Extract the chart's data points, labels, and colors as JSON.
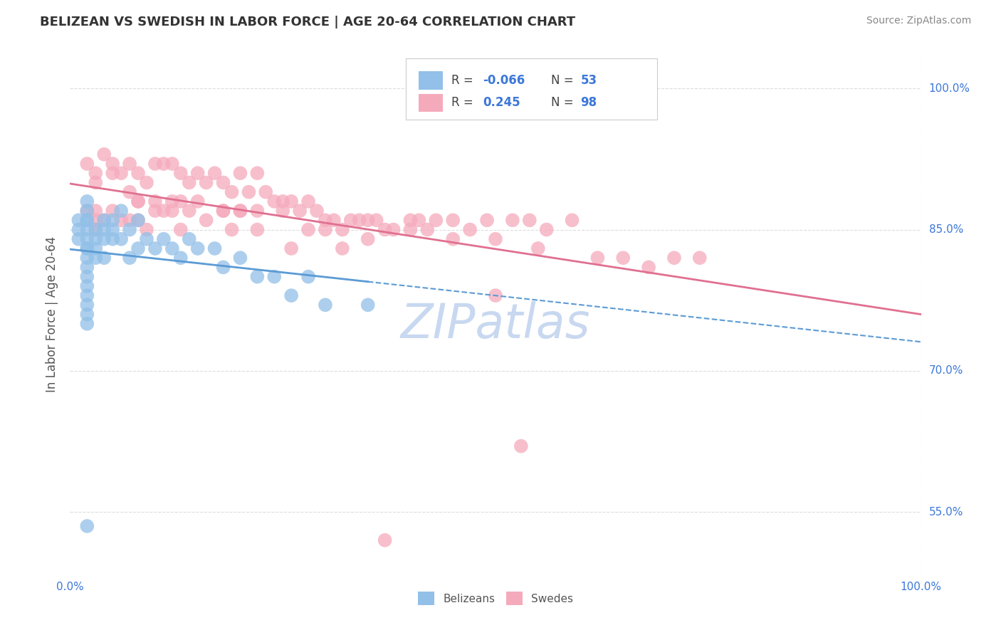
{
  "title": "BELIZEAN VS SWEDISH IN LABOR FORCE | AGE 20-64 CORRELATION CHART",
  "source": "Source: ZipAtlas.com",
  "ylabel": "In Labor Force | Age 20-64",
  "xlim": [
    0.0,
    1.0
  ],
  "ylim": [
    0.48,
    1.04
  ],
  "ytick_positions": [
    0.55,
    0.7,
    0.85,
    1.0
  ],
  "ytick_labels": [
    "55.0%",
    "70.0%",
    "85.0%",
    "100.0%"
  ],
  "belizean_color": "#92C0E8",
  "swedish_color": "#F5AABC",
  "belizean_R": -0.066,
  "belizean_N": 53,
  "swedish_R": 0.245,
  "swedish_N": 98,
  "legend_color": "#3C78D8",
  "watermark": "ZIPatlas",
  "watermark_color": "#C8D8F0",
  "background_color": "#FFFFFF",
  "grid_color": "#DDDDDD",
  "title_color": "#333333",
  "blue_line_color": "#5B9BD5",
  "pink_line_color": "#E07090",
  "belizean_x": [
    0.01,
    0.01,
    0.01,
    0.02,
    0.02,
    0.02,
    0.02,
    0.02,
    0.02,
    0.02,
    0.02,
    0.02,
    0.02,
    0.02,
    0.02,
    0.02,
    0.02,
    0.02,
    0.02,
    0.03,
    0.03,
    0.03,
    0.03,
    0.04,
    0.04,
    0.04,
    0.04,
    0.05,
    0.05,
    0.05,
    0.06,
    0.06,
    0.07,
    0.07,
    0.08,
    0.08,
    0.09,
    0.1,
    0.11,
    0.12,
    0.13,
    0.14,
    0.15,
    0.17,
    0.18,
    0.2,
    0.22,
    0.24,
    0.26,
    0.28,
    0.3,
    0.35,
    0.02
  ],
  "belizean_y": [
    0.86,
    0.85,
    0.84,
    0.88,
    0.87,
    0.86,
    0.86,
    0.85,
    0.84,
    0.83,
    0.83,
    0.82,
    0.81,
    0.8,
    0.79,
    0.78,
    0.77,
    0.76,
    0.75,
    0.85,
    0.84,
    0.83,
    0.82,
    0.86,
    0.85,
    0.84,
    0.82,
    0.86,
    0.85,
    0.84,
    0.87,
    0.84,
    0.85,
    0.82,
    0.86,
    0.83,
    0.84,
    0.83,
    0.84,
    0.83,
    0.82,
    0.84,
    0.83,
    0.83,
    0.81,
    0.82,
    0.8,
    0.8,
    0.78,
    0.8,
    0.77,
    0.77,
    0.535
  ],
  "swedish_x": [
    0.02,
    0.03,
    0.03,
    0.04,
    0.05,
    0.05,
    0.06,
    0.07,
    0.07,
    0.08,
    0.08,
    0.09,
    0.1,
    0.1,
    0.11,
    0.11,
    0.12,
    0.12,
    0.13,
    0.13,
    0.14,
    0.15,
    0.15,
    0.16,
    0.17,
    0.18,
    0.18,
    0.19,
    0.2,
    0.2,
    0.21,
    0.22,
    0.22,
    0.23,
    0.24,
    0.25,
    0.26,
    0.27,
    0.28,
    0.28,
    0.29,
    0.3,
    0.31,
    0.32,
    0.33,
    0.34,
    0.35,
    0.36,
    0.37,
    0.38,
    0.4,
    0.41,
    0.42,
    0.43,
    0.45,
    0.47,
    0.49,
    0.5,
    0.52,
    0.54,
    0.56,
    0.59,
    0.62,
    0.65,
    0.68,
    0.71,
    0.74,
    0.2,
    0.25,
    0.3,
    0.35,
    0.4,
    0.45,
    0.5,
    0.55,
    0.53,
    0.26,
    0.32,
    0.18,
    0.14,
    0.08,
    0.1,
    0.12,
    0.07,
    0.06,
    0.05,
    0.04,
    0.03,
    0.02,
    0.03,
    0.03,
    0.08,
    0.09,
    0.13,
    0.16,
    0.19,
    0.22,
    0.37
  ],
  "swedish_y": [
    0.92,
    0.91,
    0.9,
    0.93,
    0.92,
    0.91,
    0.91,
    0.92,
    0.89,
    0.91,
    0.88,
    0.9,
    0.92,
    0.88,
    0.92,
    0.87,
    0.92,
    0.88,
    0.91,
    0.88,
    0.9,
    0.91,
    0.88,
    0.9,
    0.91,
    0.9,
    0.87,
    0.89,
    0.91,
    0.87,
    0.89,
    0.91,
    0.87,
    0.89,
    0.88,
    0.88,
    0.88,
    0.87,
    0.88,
    0.85,
    0.87,
    0.86,
    0.86,
    0.85,
    0.86,
    0.86,
    0.86,
    0.86,
    0.85,
    0.85,
    0.86,
    0.86,
    0.85,
    0.86,
    0.86,
    0.85,
    0.86,
    0.78,
    0.86,
    0.86,
    0.85,
    0.86,
    0.82,
    0.82,
    0.81,
    0.82,
    0.82,
    0.87,
    0.87,
    0.85,
    0.84,
    0.85,
    0.84,
    0.84,
    0.83,
    0.62,
    0.83,
    0.83,
    0.87,
    0.87,
    0.88,
    0.87,
    0.87,
    0.86,
    0.86,
    0.87,
    0.86,
    0.87,
    0.87,
    0.86,
    0.85,
    0.86,
    0.85,
    0.85,
    0.86,
    0.85,
    0.85,
    0.52
  ]
}
